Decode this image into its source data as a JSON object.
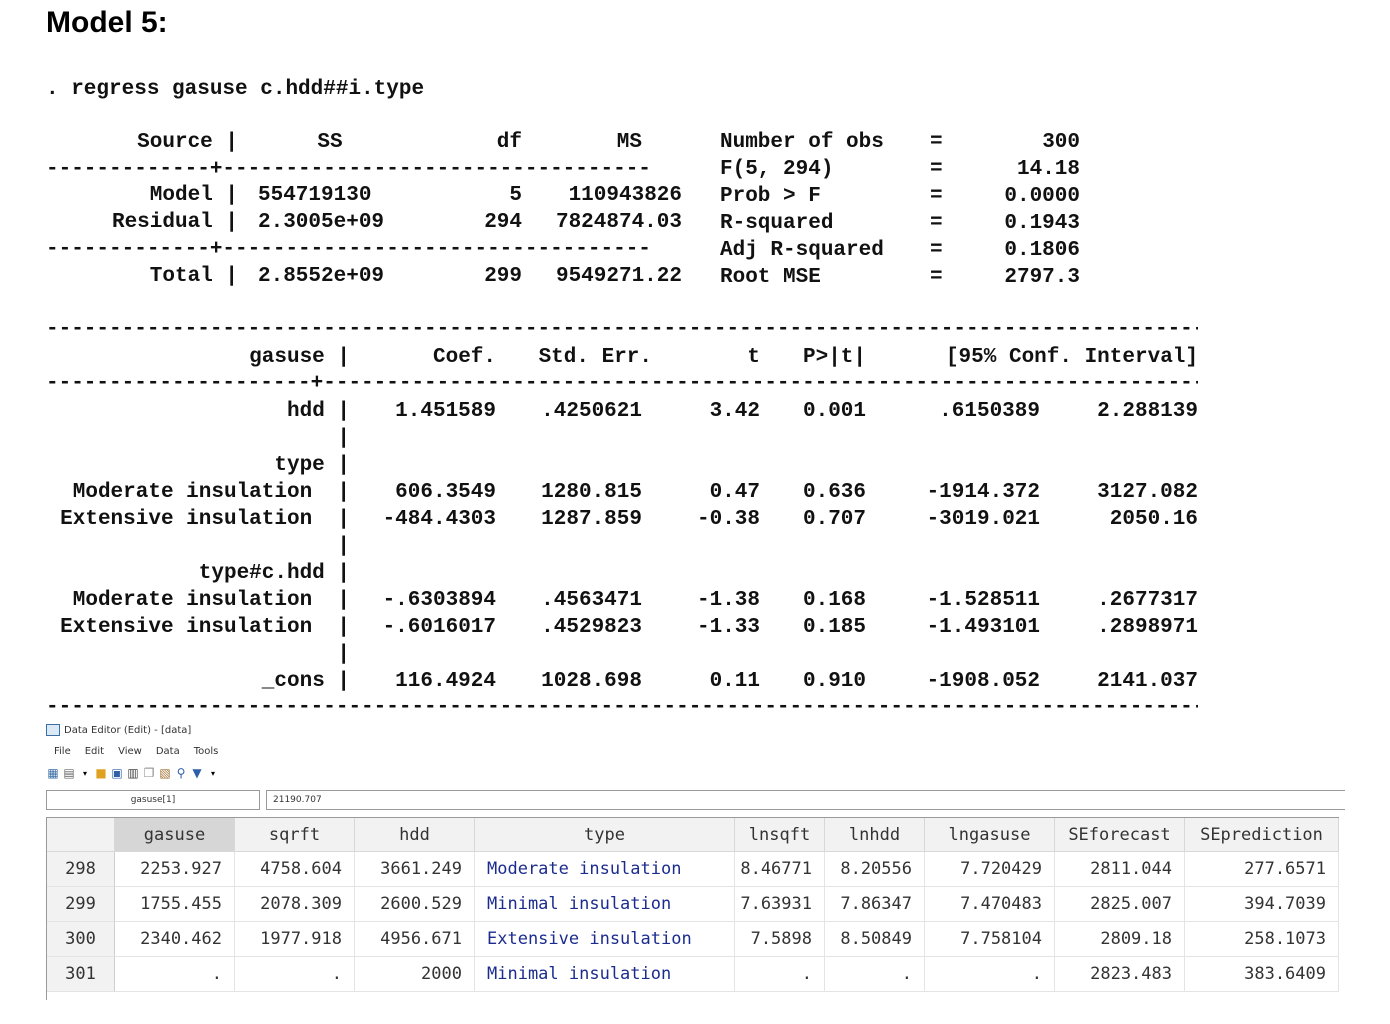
{
  "heading": "Model 5:",
  "command": ". regress gasuse c.hdd##i.type",
  "anova": {
    "header": {
      "source": "Source |",
      "ss": "SS",
      "df": "df",
      "ms": "MS"
    },
    "separator": "-------------+----------------------------------",
    "rows": [
      {
        "source": "Model |",
        "ss": "554719130",
        "df": "5",
        "ms": "110943826"
      },
      {
        "source": "Residual |",
        "ss": "2.3005e+09",
        "df": "294",
        "ms": "7824874.03"
      },
      {
        "source": "Total |",
        "ss": "2.8552e+09",
        "df": "299",
        "ms": "9549271.22"
      }
    ],
    "stats": [
      {
        "label": "Number of obs",
        "eq": "=",
        "value": "300"
      },
      {
        "label": "F(5, 294)",
        "eq": "=",
        "value": "14.18"
      },
      {
        "label": "Prob > F",
        "eq": "=",
        "value": "0.0000"
      },
      {
        "label": "R-squared",
        "eq": "=",
        "value": "0.1943"
      },
      {
        "label": "Adj R-squared",
        "eq": "=",
        "value": "0.1806"
      },
      {
        "label": "Root MSE",
        "eq": "=",
        "value": "2797.3"
      }
    ]
  },
  "coef_table": {
    "rule": "----------------------------------------------------------------------------------------------------",
    "header": {
      "var": "gasuse |",
      "coef": "Coef.",
      "se": "Std. Err.",
      "t": "t",
      "p": "P>|t|",
      "ci": "[95% Conf. Interval]"
    },
    "midrule": "---------------------+------------------------------------------------------------------------------",
    "rows": [
      {
        "var": "hdd |",
        "coef": "1.451589",
        "se": ".4250621",
        "t": "3.42",
        "p": "0.001",
        "lo": ".6150389",
        "hi": "2.288139"
      },
      {
        "var": "|",
        "coef": "",
        "se": "",
        "t": "",
        "p": "",
        "lo": "",
        "hi": ""
      },
      {
        "var": "type |",
        "coef": "",
        "se": "",
        "t": "",
        "p": "",
        "lo": "",
        "hi": ""
      },
      {
        "var": "Moderate insulation  |",
        "coef": "606.3549",
        "se": "1280.815",
        "t": "0.47",
        "p": "0.636",
        "lo": "-1914.372",
        "hi": "3127.082"
      },
      {
        "var": "Extensive insulation  |",
        "coef": "-484.4303",
        "se": "1287.859",
        "t": "-0.38",
        "p": "0.707",
        "lo": "-3019.021",
        "hi": "2050.16"
      },
      {
        "var": "|",
        "coef": "",
        "se": "",
        "t": "",
        "p": "",
        "lo": "",
        "hi": ""
      },
      {
        "var": "type#c.hdd |",
        "coef": "",
        "se": "",
        "t": "",
        "p": "",
        "lo": "",
        "hi": ""
      },
      {
        "var": "Moderate insulation  |",
        "coef": "-.6303894",
        "se": ".4563471",
        "t": "-1.38",
        "p": "0.168",
        "lo": "-1.528511",
        "hi": ".2677317"
      },
      {
        "var": "Extensive insulation  |",
        "coef": "-.6016017",
        "se": ".4529823",
        "t": "-1.33",
        "p": "0.185",
        "lo": "-1.493101",
        "hi": ".2898971"
      },
      {
        "var": "|",
        "coef": "",
        "se": "",
        "t": "",
        "p": "",
        "lo": "",
        "hi": ""
      },
      {
        "var": "_cons |",
        "coef": "116.4924",
        "se": "1028.698",
        "t": "0.11",
        "p": "0.910",
        "lo": "-1908.052",
        "hi": "2141.037"
      }
    ]
  },
  "data_editor": {
    "title": "Data Editor (Edit) - [data]",
    "menu": [
      "File",
      "Edit",
      "View",
      "Data",
      "Tools"
    ],
    "ref_box": "gasuse[1]",
    "value_box": "21190.707",
    "columns": [
      "gasuse",
      "sqrft",
      "hdd",
      "type",
      "lnsqft",
      "lnhdd",
      "lngasuse",
      "SEforecast",
      "SEprediction"
    ],
    "rows": [
      {
        "n": "298",
        "cells": [
          "2253.927",
          "4758.604",
          "3661.249",
          "Moderate insulation",
          "8.46771",
          "8.20556",
          "7.720429",
          "2811.044",
          "277.6571"
        ]
      },
      {
        "n": "299",
        "cells": [
          "1755.455",
          "2078.309",
          "2600.529",
          "Minimal insulation",
          "7.63931",
          "7.86347",
          "7.470483",
          "2825.007",
          "394.7039"
        ]
      },
      {
        "n": "300",
        "cells": [
          "2340.462",
          "1977.918",
          "4956.671",
          "Extensive insulation",
          "7.5898",
          "8.50849",
          "7.758104",
          "2809.18",
          "258.1073"
        ]
      },
      {
        "n": "301",
        "cells": [
          ".",
          ".",
          "2000",
          "Minimal insulation",
          ".",
          ".",
          ".",
          "2823.483",
          "383.6409"
        ]
      }
    ]
  }
}
